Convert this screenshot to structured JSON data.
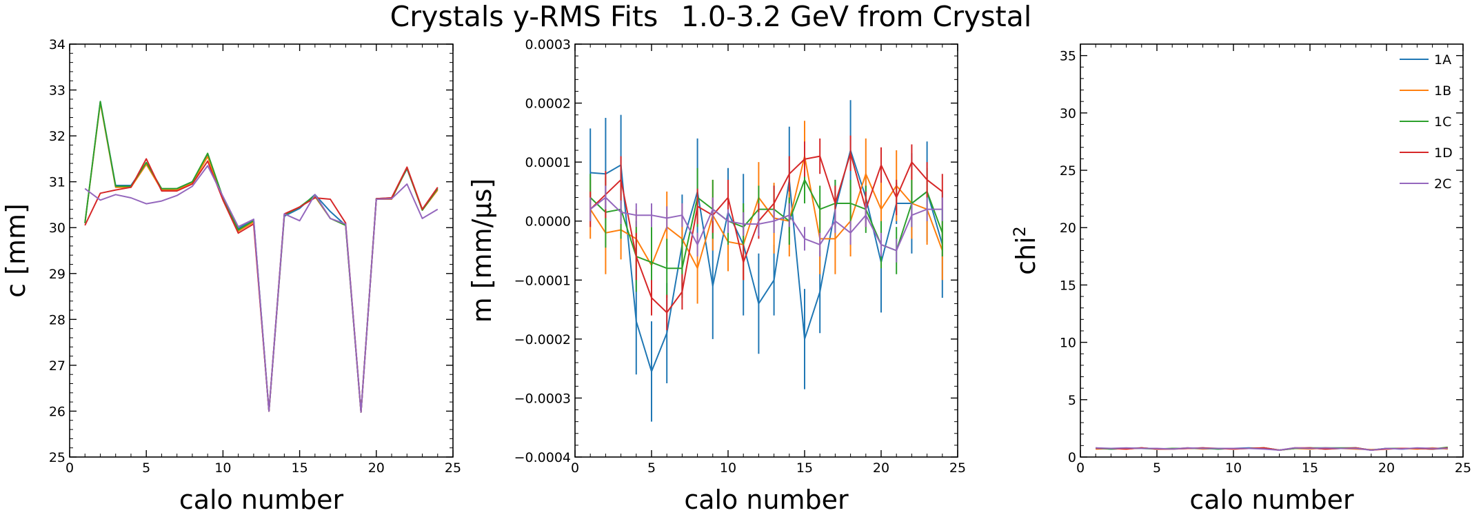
{
  "figure": {
    "title_left": "Crystals y-RMS Fits",
    "title_right": "1.0-3.2 GeV from Crystal"
  },
  "series_colors": {
    "1A": "#1f77b4",
    "1B": "#ff7f0e",
    "1C": "#2ca02c",
    "1D": "#d62728",
    "2C": "#9467bd"
  },
  "chart_data": [
    {
      "type": "line",
      "xlabel": "calo number",
      "ylabel": "c    [mm]",
      "xlim": [
        0,
        25
      ],
      "ylim": [
        25,
        34
      ],
      "xticks": [
        0,
        5,
        10,
        15,
        20,
        25
      ],
      "xtick_labels": [
        "0",
        "5",
        "10",
        "15",
        "20",
        "25"
      ],
      "yticks": [
        25,
        26,
        27,
        28,
        29,
        30,
        31,
        32,
        33,
        34
      ],
      "ytick_labels": [
        "25",
        "26",
        "27",
        "28",
        "29",
        "30",
        "31",
        "32",
        "33",
        "34"
      ],
      "x": [
        1,
        2,
        3,
        4,
        5,
        6,
        7,
        8,
        9,
        10,
        11,
        12,
        13,
        14,
        15,
        16,
        17,
        18,
        19,
        20,
        21,
        22,
        23,
        24
      ],
      "series": [
        {
          "name": "1A",
          "values": [
            30.1,
            32.75,
            30.92,
            30.92,
            31.4,
            30.83,
            30.85,
            31.0,
            31.6,
            30.65,
            29.98,
            30.18,
            26.0,
            30.25,
            30.42,
            30.72,
            30.35,
            30.05,
            25.98,
            30.63,
            30.65,
            31.28,
            30.4,
            30.85
          ]
        },
        {
          "name": "1B",
          "values": [
            30.1,
            32.72,
            30.88,
            30.88,
            31.38,
            30.82,
            30.82,
            30.97,
            31.55,
            30.62,
            29.92,
            30.12,
            26.0,
            30.28,
            30.45,
            30.68,
            30.2,
            30.05,
            25.98,
            30.62,
            30.62,
            31.3,
            30.38,
            30.82
          ]
        },
        {
          "name": "1C",
          "values": [
            30.1,
            32.75,
            30.9,
            30.9,
            31.42,
            30.85,
            30.85,
            31.0,
            31.62,
            30.65,
            29.95,
            30.15,
            26.0,
            30.28,
            30.45,
            30.7,
            30.2,
            30.05,
            25.98,
            30.63,
            30.63,
            31.3,
            30.38,
            30.85
          ]
        },
        {
          "name": "1D",
          "values": [
            30.05,
            30.75,
            30.82,
            30.88,
            31.5,
            30.8,
            30.8,
            30.95,
            31.45,
            30.6,
            29.88,
            30.08,
            26.0,
            30.3,
            30.45,
            30.65,
            30.62,
            30.1,
            25.98,
            30.63,
            30.65,
            31.32,
            30.4,
            30.88
          ]
        },
        {
          "name": "2C",
          "values": [
            30.85,
            30.6,
            30.72,
            30.65,
            30.52,
            30.58,
            30.7,
            30.9,
            31.35,
            30.68,
            30.02,
            30.18,
            26.0,
            30.3,
            30.15,
            30.72,
            30.2,
            30.08,
            25.98,
            30.62,
            30.63,
            30.95,
            30.2,
            30.4
          ]
        }
      ]
    },
    {
      "type": "line",
      "error_bars": true,
      "xlabel": "calo number",
      "ylabel": "m    [mm/µs]",
      "xlim": [
        0,
        25
      ],
      "ylim": [
        -0.0004,
        0.0003
      ],
      "xticks": [
        0,
        5,
        10,
        15,
        20,
        25
      ],
      "xtick_labels": [
        "0",
        "5",
        "10",
        "15",
        "20",
        "25"
      ],
      "yticks": [
        -0.0004,
        -0.0003,
        -0.0002,
        -0.0001,
        0.0,
        0.0001,
        0.0002,
        0.0003
      ],
      "ytick_labels": [
        "−0.0004",
        "−0.0003",
        "−0.0002",
        "−0.0001",
        "0.0000",
        "0.0001",
        "0.0002",
        "0.0003"
      ],
      "x": [
        1,
        2,
        3,
        4,
        5,
        6,
        7,
        8,
        9,
        10,
        11,
        12,
        13,
        14,
        15,
        16,
        17,
        18,
        19,
        20,
        21,
        22,
        23,
        24
      ],
      "series": [
        {
          "name": "1A",
          "values": [
            8.2e-05,
            8e-05,
            9.5e-05,
            -0.00017,
            -0.000255,
            -0.00019,
            -4e-05,
            5e-05,
            -0.00011,
            1.5e-05,
            -4e-05,
            -0.00014,
            -0.0001,
            7e-05,
            -0.0002,
            -0.00012,
            2e-05,
            0.00012,
            4e-05,
            -7e-05,
            3e-05,
            3e-05,
            5e-05,
            -4e-05
          ],
          "errors": [
            7.5e-05,
            9.5e-05,
            8.5e-05,
            9e-05,
            8.5e-05,
            8.5e-05,
            8.5e-05,
            9e-05,
            9e-05,
            7.5e-05,
            0.00012,
            8.5e-05,
            6e-05,
            9e-05,
            8.5e-05,
            7e-05,
            5e-05,
            8.5e-05,
            4e-05,
            8.5e-05,
            3.5e-05,
            8.5e-05,
            8.5e-05,
            9e-05
          ]
        },
        {
          "name": "1B",
          "values": [
            2e-05,
            -2e-05,
            -1.5e-05,
            -3e-05,
            -7.5e-05,
            -1e-05,
            -3e-05,
            -8e-05,
            1e-05,
            -3.5e-05,
            -4e-05,
            4e-05,
            5e-06,
            0.0,
            0.00011,
            -3e-05,
            -3e-05,
            0.0,
            8e-05,
            2e-05,
            6e-05,
            3e-05,
            2e-05,
            -5e-05
          ],
          "errors": [
            5e-05,
            7e-05,
            5e-05,
            5e-05,
            5e-05,
            6e-05,
            6e-05,
            6e-05,
            6e-05,
            5e-05,
            6e-05,
            6e-05,
            6e-05,
            6e-05,
            6e-05,
            6e-05,
            6e-05,
            6e-05,
            6e-05,
            6e-05,
            6e-05,
            6e-05,
            6e-05,
            5e-05
          ]
        },
        {
          "name": "1C",
          "values": [
            4e-05,
            1.5e-05,
            2e-05,
            -6e-05,
            -7e-05,
            -8e-05,
            -8e-05,
            4e-05,
            2e-05,
            0.0,
            -1e-05,
            2e-05,
            2e-05,
            0.0,
            7e-05,
            2e-05,
            3e-05,
            3e-05,
            2e-05,
            -4e-05,
            -5e-05,
            3e-05,
            5e-05,
            -2e-05
          ],
          "errors": [
            4e-05,
            6e-05,
            5e-05,
            6e-05,
            6e-05,
            5e-05,
            5e-05,
            5e-05,
            5e-05,
            4e-05,
            4e-05,
            4e-05,
            4e-05,
            4e-05,
            4e-05,
            4e-05,
            4e-05,
            4e-05,
            4e-05,
            4e-05,
            4e-05,
            4e-05,
            4e-05,
            4e-05
          ]
        },
        {
          "name": "1D",
          "values": [
            2e-05,
            4.5e-05,
            7e-05,
            -6e-05,
            -0.00013,
            -0.000155,
            -0.00012,
            2.5e-05,
            1e-05,
            4e-05,
            -7e-05,
            0.0,
            3e-05,
            8e-05,
            0.000105,
            0.00011,
            3e-05,
            0.000115,
            2e-05,
            9.5e-05,
            4e-05,
            0.0001,
            7e-05,
            5e-05
          ],
          "errors": [
            3e-05,
            4e-05,
            4e-05,
            4e-05,
            3e-05,
            3e-05,
            3e-05,
            3e-05,
            3e-05,
            3e-05,
            3e-05,
            3e-05,
            3e-05,
            3e-05,
            3e-05,
            3e-05,
            3e-05,
            3e-05,
            3e-05,
            3e-05,
            3e-05,
            3e-05,
            3e-05,
            3e-05
          ]
        },
        {
          "name": "2C",
          "values": [
            2e-05,
            4e-05,
            1.5e-05,
            1e-05,
            1e-05,
            5e-06,
            1e-05,
            -4e-05,
            2e-05,
            0.0,
            -5e-06,
            -5e-06,
            0.0,
            1e-05,
            -3e-05,
            -4e-05,
            0.0,
            -2e-05,
            1e-05,
            -4e-05,
            -5e-05,
            1e-05,
            2e-05,
            2e-05
          ],
          "errors": [
            2e-05,
            2e-05,
            2e-05,
            2e-05,
            2e-05,
            2e-05,
            2e-05,
            2e-05,
            2e-05,
            2e-05,
            2e-05,
            2e-05,
            2e-05,
            2e-05,
            2e-05,
            2e-05,
            2e-05,
            2e-05,
            2e-05,
            2e-05,
            2e-05,
            2e-05,
            2e-05,
            2e-05
          ]
        }
      ]
    },
    {
      "type": "line",
      "xlabel": "calo number",
      "ylabel": "chi",
      "ylabel_superscript": "2",
      "xlim": [
        0,
        25
      ],
      "ylim": [
        0,
        36
      ],
      "xticks": [
        0,
        5,
        10,
        15,
        20,
        25
      ],
      "xtick_labels": [
        "0",
        "5",
        "10",
        "15",
        "20",
        "25"
      ],
      "yticks": [
        0,
        5,
        10,
        15,
        20,
        25,
        30,
        35
      ],
      "ytick_labels": [
        "0",
        "5",
        "10",
        "15",
        "20",
        "25",
        "30",
        "35"
      ],
      "x": [
        1,
        2,
        3,
        4,
        5,
        6,
        7,
        8,
        9,
        10,
        11,
        12,
        13,
        14,
        15,
        16,
        17,
        18,
        19,
        20,
        21,
        22,
        23,
        24
      ],
      "legend": {
        "position": "top-right",
        "entries": [
          "1A",
          "1B",
          "1C",
          "1D",
          "2C"
        ]
      },
      "series": [
        {
          "name": "1A",
          "values": [
            0.8,
            0.7,
            0.75,
            0.8,
            0.7,
            0.7,
            0.75,
            0.8,
            0.7,
            0.75,
            0.8,
            0.75,
            0.6,
            0.75,
            0.8,
            0.7,
            0.75,
            0.8,
            0.6,
            0.75,
            0.7,
            0.75,
            0.7,
            0.75
          ]
        },
        {
          "name": "1B",
          "values": [
            0.7,
            0.75,
            0.7,
            0.8,
            0.7,
            0.7,
            0.8,
            0.7,
            0.75,
            0.7,
            0.75,
            0.8,
            0.6,
            0.75,
            0.7,
            0.8,
            0.75,
            0.7,
            0.65,
            0.7,
            0.75,
            0.7,
            0.8,
            0.7
          ]
        },
        {
          "name": "1C",
          "values": [
            0.75,
            0.7,
            0.75,
            0.75,
            0.7,
            0.75,
            0.75,
            0.75,
            0.7,
            0.75,
            0.75,
            0.8,
            0.6,
            0.75,
            0.8,
            0.8,
            0.8,
            0.8,
            0.6,
            0.75,
            0.75,
            0.75,
            0.7,
            0.85
          ]
        },
        {
          "name": "1D",
          "values": [
            0.75,
            0.75,
            0.7,
            0.8,
            0.7,
            0.7,
            0.75,
            0.8,
            0.75,
            0.7,
            0.75,
            0.8,
            0.6,
            0.8,
            0.8,
            0.7,
            0.75,
            0.8,
            0.6,
            0.7,
            0.75,
            0.75,
            0.7,
            0.8
          ]
        },
        {
          "name": "2C",
          "values": [
            0.8,
            0.75,
            0.8,
            0.75,
            0.75,
            0.7,
            0.8,
            0.75,
            0.75,
            0.75,
            0.75,
            0.7,
            0.6,
            0.8,
            0.75,
            0.8,
            0.75,
            0.75,
            0.6,
            0.75,
            0.7,
            0.8,
            0.75,
            0.75
          ]
        }
      ]
    }
  ]
}
